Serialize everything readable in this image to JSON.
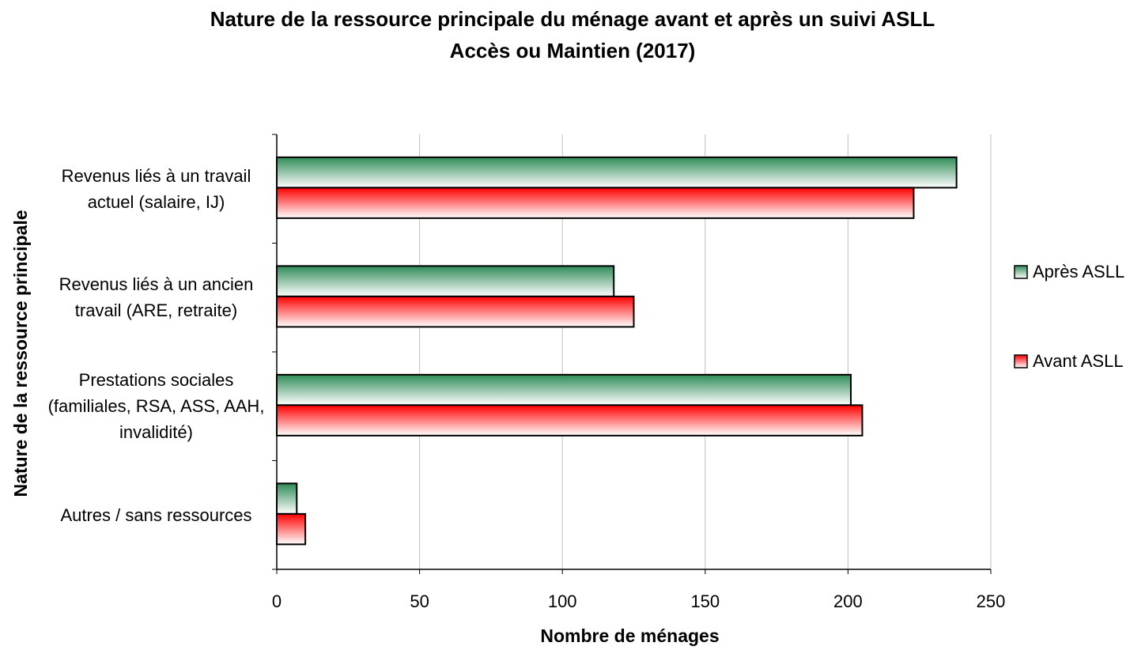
{
  "chart_data": {
    "type": "hbar",
    "title": "Nature de la ressource principale du ménage avant et après un suivi ASLL Accès ou Maintien (2017)",
    "x_label": "Nombre de ménages",
    "y_label": "Nature de la ressource principale",
    "categories": [
      "Revenus liés à un travail actuel (salaire, IJ)",
      "Revenus liés à un ancien travail (ARE, retraite)",
      "Prestations sociales (familiales, RSA, ASS, AAH, invalidité)",
      "Autres / sans ressources"
    ],
    "series": [
      {
        "name": "Après ASLL",
        "color": "#2e8b57",
        "values": [
          238,
          118,
          201,
          7
        ]
      },
      {
        "name": "Avant ASLL",
        "color": "#ff0000",
        "values": [
          223,
          125,
          205,
          10
        ]
      }
    ],
    "xlim": [
      0,
      250
    ],
    "xticks": [
      0,
      50,
      100,
      150,
      200,
      250
    ],
    "grid": true,
    "legend": "right"
  }
}
